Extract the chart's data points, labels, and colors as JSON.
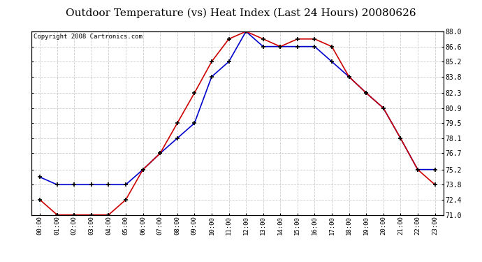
{
  "title": "Outdoor Temperature (vs) Heat Index (Last 24 Hours) 20080626",
  "copyright": "Copyright 2008 Cartronics.com",
  "hours": [
    "00:00",
    "01:00",
    "02:00",
    "03:00",
    "04:00",
    "05:00",
    "06:00",
    "07:00",
    "08:00",
    "09:00",
    "10:00",
    "11:00",
    "12:00",
    "13:00",
    "14:00",
    "15:00",
    "16:00",
    "17:00",
    "18:00",
    "19:00",
    "20:00",
    "21:00",
    "22:00",
    "23:00"
  ],
  "temp": [
    74.5,
    73.8,
    73.8,
    73.8,
    73.8,
    73.8,
    75.2,
    76.7,
    78.1,
    79.5,
    83.8,
    85.2,
    88.0,
    86.6,
    86.6,
    86.6,
    86.6,
    85.2,
    83.8,
    82.3,
    80.9,
    78.1,
    75.2,
    75.2
  ],
  "heat_index": [
    72.4,
    71.0,
    71.0,
    71.0,
    71.0,
    72.4,
    75.2,
    76.7,
    79.5,
    82.3,
    85.2,
    87.3,
    88.0,
    87.3,
    86.6,
    87.3,
    87.3,
    86.6,
    83.8,
    82.3,
    80.9,
    78.1,
    75.2,
    73.8
  ],
  "temp_color": "#0000cc",
  "heat_color": "#cc0000",
  "ylim_min": 71.0,
  "ylim_max": 88.0,
  "ytick_labels": [
    "71.0",
    "72.4",
    "73.8",
    "75.2",
    "76.7",
    "78.1",
    "79.5",
    "80.9",
    "82.3",
    "83.8",
    "85.2",
    "86.6",
    "88.0"
  ],
  "ytick_values": [
    71.0,
    72.4,
    73.8,
    75.2,
    76.7,
    78.1,
    79.5,
    80.9,
    82.3,
    83.8,
    85.2,
    86.6,
    88.0
  ],
  "bg_color": "#ffffff",
  "grid_color": "#cccccc",
  "title_fontsize": 11,
  "copyright_fontsize": 6.5
}
